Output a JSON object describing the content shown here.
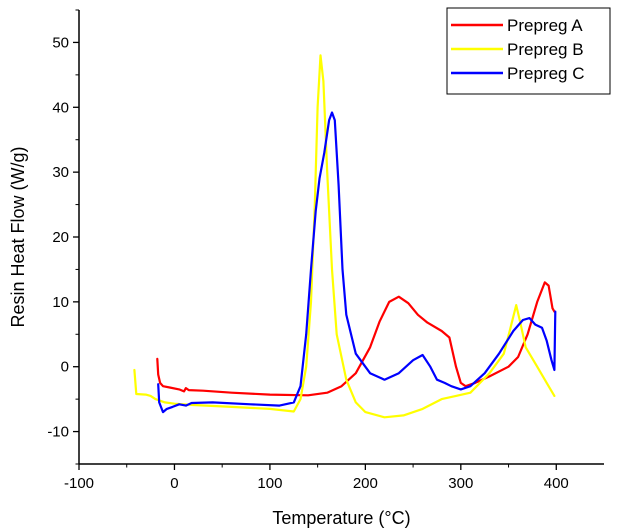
{
  "chart_data": {
    "type": "line",
    "title": "",
    "xlabel": "Temperature (°C)",
    "ylabel": "Resin Heat Flow (W/g)",
    "xlim": [
      -100,
      450
    ],
    "ylim": [
      -15,
      55
    ],
    "xticks": [
      -100,
      0,
      100,
      200,
      300,
      400
    ],
    "yticks": [
      -10,
      0,
      10,
      20,
      30,
      40,
      50
    ],
    "xtick_labels": [
      "-100",
      "0",
      "100",
      "200",
      "300",
      "400"
    ],
    "ytick_labels": [
      "-10",
      "0",
      "10",
      "20",
      "30",
      "40",
      "50"
    ],
    "grid": false,
    "legend_position": "top-right",
    "series": [
      {
        "name": "Prepreg A",
        "color": "#ff0000",
        "points": [
          [
            -18,
            1.2
          ],
          [
            -17,
            -1.2
          ],
          [
            -15,
            -2.5
          ],
          [
            -12,
            -3.0
          ],
          [
            -5,
            -3.2
          ],
          [
            5,
            -3.5
          ],
          [
            10,
            -3.8
          ],
          [
            12,
            -3.3
          ],
          [
            15,
            -3.6
          ],
          [
            30,
            -3.7
          ],
          [
            60,
            -4.0
          ],
          [
            100,
            -4.3
          ],
          [
            140,
            -4.4
          ],
          [
            160,
            -4.0
          ],
          [
            175,
            -3.0
          ],
          [
            190,
            -1.0
          ],
          [
            205,
            3.0
          ],
          [
            215,
            7.0
          ],
          [
            225,
            10.0
          ],
          [
            235,
            10.8
          ],
          [
            245,
            9.8
          ],
          [
            255,
            8.0
          ],
          [
            265,
            6.8
          ],
          [
            280,
            5.5
          ],
          [
            288,
            4.5
          ],
          [
            295,
            0.0
          ],
          [
            300,
            -2.5
          ],
          [
            305,
            -3.0
          ],
          [
            315,
            -2.5
          ],
          [
            330,
            -1.5
          ],
          [
            350,
            0.0
          ],
          [
            360,
            1.5
          ],
          [
            370,
            5.0
          ],
          [
            380,
            10.0
          ],
          [
            388,
            13.0
          ],
          [
            392,
            12.5
          ],
          [
            396,
            9.0
          ],
          [
            398,
            8.5
          ]
        ]
      },
      {
        "name": "Prepreg B",
        "color": "#ffff00",
        "points": [
          [
            -42,
            -0.5
          ],
          [
            -40,
            -4.2
          ],
          [
            -30,
            -4.3
          ],
          [
            -25,
            -4.5
          ],
          [
            -20,
            -5.0
          ],
          [
            -10,
            -5.5
          ],
          [
            0,
            -5.7
          ],
          [
            20,
            -5.9
          ],
          [
            60,
            -6.2
          ],
          [
            100,
            -6.5
          ],
          [
            125,
            -6.9
          ],
          [
            132,
            -5.0
          ],
          [
            138,
            0.0
          ],
          [
            143,
            10.0
          ],
          [
            147,
            25.0
          ],
          [
            150,
            40.0
          ],
          [
            153,
            48.0
          ],
          [
            156,
            44.0
          ],
          [
            160,
            30.0
          ],
          [
            165,
            15.0
          ],
          [
            170,
            5.0
          ],
          [
            180,
            -2.0
          ],
          [
            190,
            -5.5
          ],
          [
            200,
            -7.0
          ],
          [
            220,
            -7.8
          ],
          [
            240,
            -7.5
          ],
          [
            260,
            -6.5
          ],
          [
            280,
            -5.0
          ],
          [
            295,
            -4.5
          ],
          [
            310,
            -4.0
          ],
          [
            330,
            -1.0
          ],
          [
            345,
            2.0
          ],
          [
            352,
            6.0
          ],
          [
            358,
            9.5
          ],
          [
            362,
            7.0
          ],
          [
            368,
            3.0
          ],
          [
            380,
            0.0
          ],
          [
            390,
            -2.5
          ],
          [
            398,
            -4.5
          ]
        ]
      },
      {
        "name": "Prepreg C",
        "color": "#0000ff",
        "points": [
          [
            -17,
            -2.7
          ],
          [
            -16,
            -5.5
          ],
          [
            -12,
            -7.0
          ],
          [
            -8,
            -6.5
          ],
          [
            -2,
            -6.2
          ],
          [
            5,
            -5.8
          ],
          [
            12,
            -6.0
          ],
          [
            18,
            -5.6
          ],
          [
            40,
            -5.5
          ],
          [
            80,
            -5.8
          ],
          [
            110,
            -6.0
          ],
          [
            125,
            -5.5
          ],
          [
            132,
            -3.0
          ],
          [
            138,
            5.0
          ],
          [
            143,
            15.0
          ],
          [
            148,
            24.0
          ],
          [
            152,
            29.0
          ],
          [
            157,
            33.0
          ],
          [
            162,
            38.0
          ],
          [
            165,
            39.2
          ],
          [
            168,
            38.0
          ],
          [
            172,
            28.0
          ],
          [
            176,
            15.0
          ],
          [
            180,
            8.0
          ],
          [
            190,
            2.0
          ],
          [
            205,
            -1.0
          ],
          [
            220,
            -2.0
          ],
          [
            235,
            -1.0
          ],
          [
            250,
            1.0
          ],
          [
            260,
            1.8
          ],
          [
            268,
            0.0
          ],
          [
            275,
            -2.0
          ],
          [
            283,
            -2.5
          ],
          [
            290,
            -3.0
          ],
          [
            300,
            -3.5
          ],
          [
            310,
            -3.0
          ],
          [
            325,
            -1.0
          ],
          [
            340,
            2.0
          ],
          [
            355,
            5.5
          ],
          [
            365,
            7.2
          ],
          [
            372,
            7.5
          ],
          [
            378,
            6.5
          ],
          [
            385,
            6.0
          ],
          [
            390,
            4.0
          ],
          [
            395,
            1.0
          ],
          [
            398,
            -0.5
          ],
          [
            399,
            8.5
          ]
        ]
      }
    ]
  }
}
